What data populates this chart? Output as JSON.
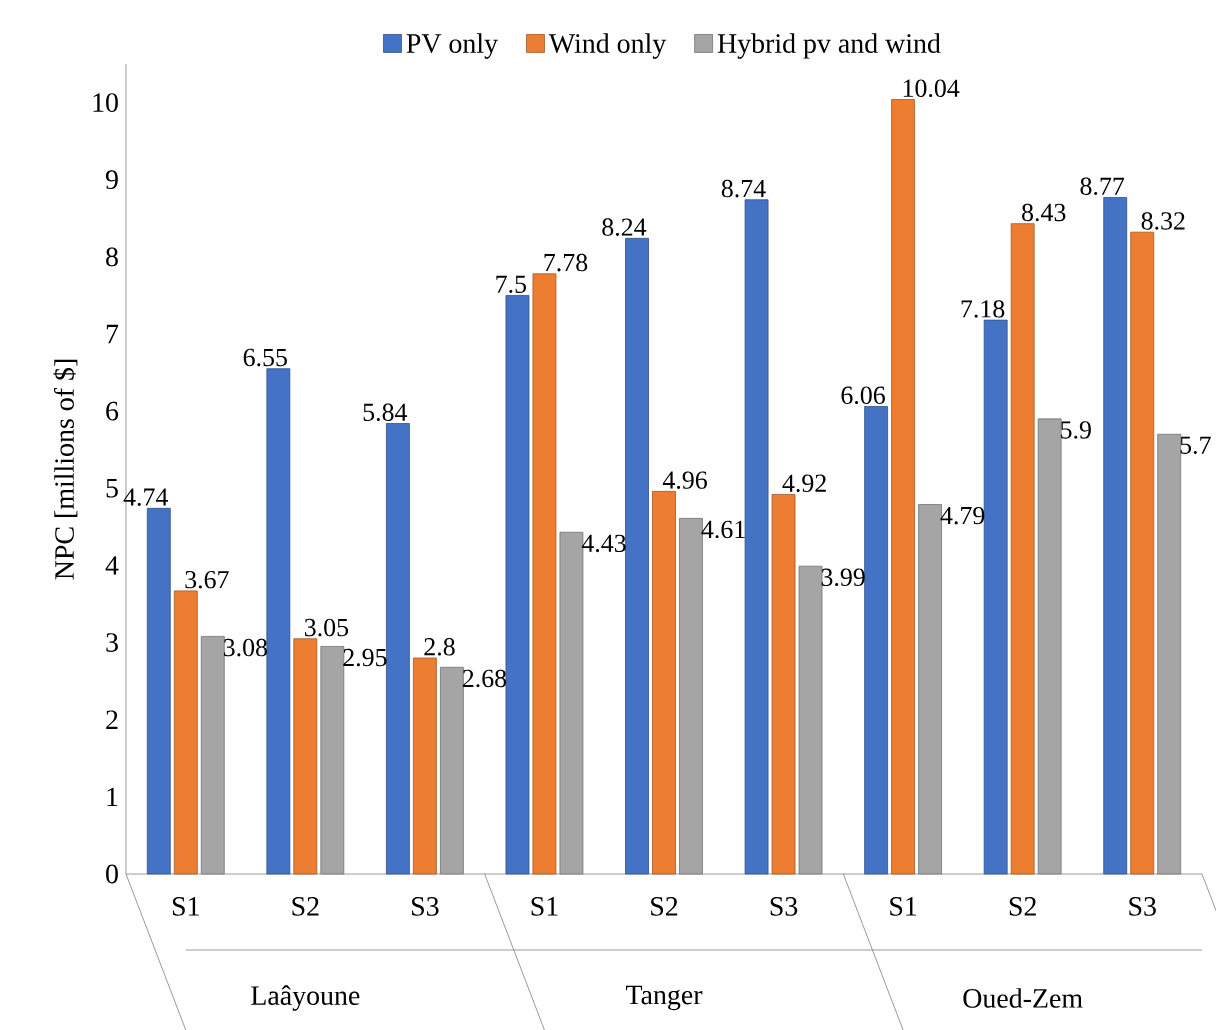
{
  "chart_data": {
    "type": "bar",
    "ylabel": "NPC [millions of $]",
    "categories": [
      "S1",
      "S2",
      "S3",
      "S1",
      "S2",
      "S3",
      "S1",
      "S2",
      "S3"
    ],
    "series": [
      {
        "name": "PV only",
        "color": "#4472c4",
        "values": [
          4.74,
          6.55,
          5.84,
          7.5,
          8.24,
          8.74,
          6.06,
          7.18,
          8.77
        ]
      },
      {
        "name": "Wind only",
        "color": "#ed7d31",
        "values": [
          3.67,
          3.05,
          2.8,
          7.78,
          4.96,
          4.92,
          10.04,
          8.43,
          8.32
        ]
      },
      {
        "name": "Hybrid pv and wind",
        "color": "#a5a5a5",
        "values": [
          3.08,
          2.95,
          2.68,
          4.43,
          4.61,
          3.99,
          4.79,
          5.9,
          5.7
        ]
      }
    ],
    "annotations": [
      "Laâyoune",
      "Tanger",
      "Oued-Zem"
    ],
    "ylim": [
      0,
      10.5
    ],
    "yticks": [
      0,
      1,
      2,
      3,
      4,
      5,
      6,
      7,
      8,
      9,
      10
    ],
    "data_labels": true,
    "legend": "top",
    "grid": false
  }
}
